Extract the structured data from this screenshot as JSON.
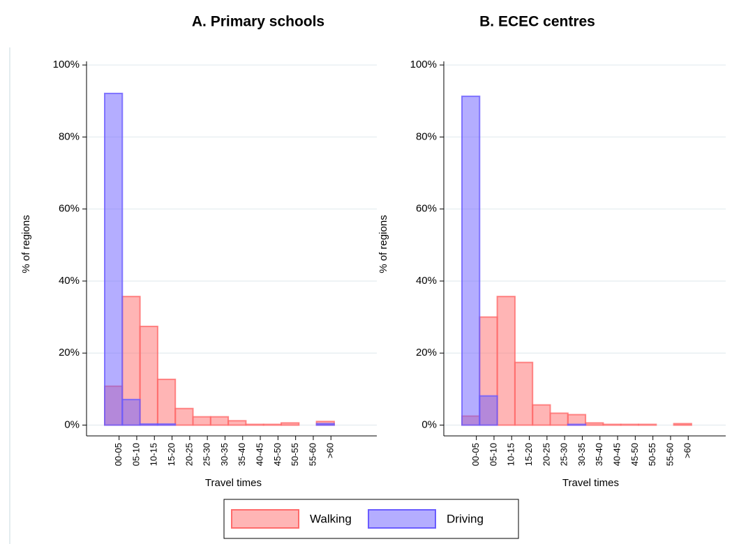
{
  "chart_data": [
    {
      "type": "bar",
      "title": "A. Primary schools",
      "xlabel": "Travel times",
      "ylabel": "% of regions",
      "categories": [
        "00-05",
        "05-10",
        "10-15",
        "15-20",
        "20-25",
        "25-30",
        "30-35",
        "35-40",
        "40-45",
        "45-50",
        "50-55",
        "55-60",
        ">60"
      ],
      "series": [
        {
          "name": "Walking",
          "color": "#ff6b6b",
          "values": [
            10.8,
            35.7,
            27.4,
            12.7,
            4.6,
            2.3,
            2.3,
            1.2,
            0.2,
            0.2,
            0.6,
            0,
            1.0
          ]
        },
        {
          "name": "Driving",
          "color": "#6a5cff",
          "values": [
            92.1,
            7.1,
            0.3,
            0.3,
            0,
            0,
            0,
            0,
            0,
            0,
            0,
            0,
            0.4
          ]
        }
      ],
      "ylim": [
        -3,
        101
      ],
      "yticks": [
        {
          "value": 0,
          "label": "0%"
        },
        {
          "value": 20,
          "label": "20%"
        },
        {
          "value": 40,
          "label": "40%"
        },
        {
          "value": 60,
          "label": "60%"
        },
        {
          "value": 80,
          "label": "80%"
        },
        {
          "value": 100,
          "label": "100%"
        }
      ],
      "grid": true
    },
    {
      "type": "bar",
      "title": "B. ECEC centres",
      "xlabel": "Travel times",
      "ylabel": "% of regions",
      "categories": [
        "00-05",
        "05-10",
        "10-15",
        "15-20",
        "20-25",
        "25-30",
        "30-35",
        "35-40",
        "40-45",
        "45-50",
        "50-55",
        "55-60",
        ">60"
      ],
      "series": [
        {
          "name": "Walking",
          "color": "#ff6b6b",
          "values": [
            2.5,
            30.0,
            35.7,
            17.4,
            5.6,
            3.3,
            2.9,
            0.6,
            0.2,
            0.2,
            0.2,
            0,
            0.4
          ]
        },
        {
          "name": "Driving",
          "color": "#6a5cff",
          "values": [
            91.3,
            8.1,
            0,
            0,
            0,
            0,
            0.2,
            0,
            0,
            0,
            0,
            0,
            0
          ]
        }
      ],
      "ylim": [
        -3,
        101
      ],
      "yticks": [
        {
          "value": 0,
          "label": "0%"
        },
        {
          "value": 20,
          "label": "20%"
        },
        {
          "value": 40,
          "label": "40%"
        },
        {
          "value": 60,
          "label": "60%"
        },
        {
          "value": 80,
          "label": "80%"
        },
        {
          "value": 100,
          "label": "100%"
        }
      ],
      "grid": true
    }
  ]
}
